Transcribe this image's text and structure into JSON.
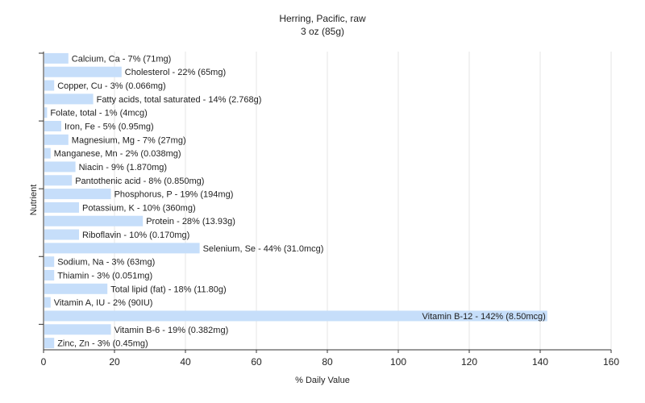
{
  "chart_data": {
    "type": "bar",
    "orientation": "horizontal",
    "title": "Herring, Pacific, raw",
    "subtitle": "3 oz (85g)",
    "xlabel": "% Daily Value",
    "ylabel": "Nutrient",
    "xlim": [
      0,
      160
    ],
    "xticks": [
      "0",
      "20",
      "40",
      "60",
      "80",
      "100",
      "120",
      "140",
      "160"
    ],
    "grid": true,
    "bar_color": "#c6defa",
    "categories": [
      "Calcium, Ca",
      "Cholesterol",
      "Copper, Cu",
      "Fatty acids, total saturated",
      "Folate, total",
      "Iron, Fe",
      "Magnesium, Mg",
      "Manganese, Mn",
      "Niacin",
      "Pantothenic acid",
      "Phosphorus, P",
      "Potassium, K",
      "Protein",
      "Riboflavin",
      "Selenium, Se",
      "Sodium, Na",
      "Thiamin",
      "Total lipid (fat)",
      "Vitamin A, IU",
      "Vitamin B-12",
      "Vitamin B-6",
      "Zinc, Zn"
    ],
    "values": [
      7,
      22,
      3,
      14,
      1,
      5,
      7,
      2,
      9,
      8,
      19,
      10,
      28,
      10,
      44,
      3,
      3,
      18,
      2,
      142,
      19,
      3
    ],
    "labels": [
      "Calcium, Ca - 7% (71mg)",
      "Cholesterol - 22% (65mg)",
      "Copper, Cu - 3% (0.066mg)",
      "Fatty acids, total saturated - 14% (2.768g)",
      "Folate, total - 1% (4mcg)",
      "Iron, Fe - 5% (0.95mg)",
      "Magnesium, Mg - 7% (27mg)",
      "Manganese, Mn - 2% (0.038mg)",
      "Niacin - 9% (1.870mg)",
      "Pantothenic acid - 8% (0.850mg)",
      "Phosphorus, P - 19% (194mg)",
      "Potassium, K - 10% (360mg)",
      "Protein - 28% (13.93g)",
      "Riboflavin - 10% (0.170mg)",
      "Selenium, Se - 44% (31.0mcg)",
      "Sodium, Na - 3% (63mg)",
      "Thiamin - 3% (0.051mg)",
      "Total lipid (fat) - 18% (11.80g)",
      "Vitamin A, IU - 2% (90IU)",
      "Vitamin B-12 - 142% (8.50mcg)",
      "Vitamin B-6 - 19% (0.382mg)",
      "Zinc, Zn - 3% (0.45mg)"
    ]
  }
}
